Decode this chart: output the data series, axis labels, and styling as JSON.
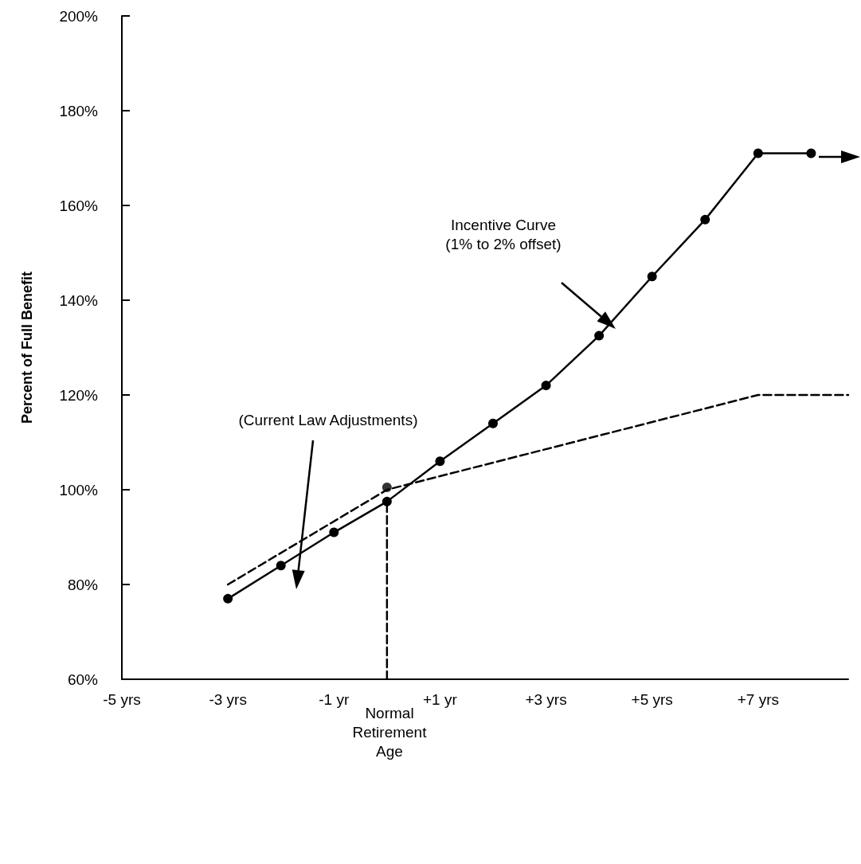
{
  "chart_data": {
    "type": "line",
    "ylabel": "Percent of Full Benefit",
    "xlim": [
      -5,
      8.7
    ],
    "ylim": [
      60,
      200
    ],
    "xticks": [
      {
        "value": -5,
        "label": "-5 yrs"
      },
      {
        "value": -3,
        "label": "-3 yrs"
      },
      {
        "value": -1,
        "label": "-1 yr"
      },
      {
        "value": 1,
        "label": "+1 yr"
      },
      {
        "value": 3,
        "label": "+3 yrs"
      },
      {
        "value": 5,
        "label": "+5 yrs"
      },
      {
        "value": 7,
        "label": "+7 yrs"
      }
    ],
    "yticks": [
      {
        "value": 60,
        "label": "60%"
      },
      {
        "value": 80,
        "label": "80%"
      },
      {
        "value": 100,
        "label": "100%"
      },
      {
        "value": 120,
        "label": "120%"
      },
      {
        "value": 140,
        "label": "140%"
      },
      {
        "value": 160,
        "label": "160%"
      },
      {
        "value": 180,
        "label": "180%"
      },
      {
        "value": 200,
        "label": "200%"
      }
    ],
    "grid": false,
    "legend": false,
    "series": [
      {
        "type": "line",
        "color": "#000000",
        "marker": "circle",
        "line_style": "solid",
        "x": [
          -3,
          -2,
          -1,
          0,
          1,
          2,
          3,
          4,
          5,
          6,
          7,
          8
        ],
        "values": [
          77,
          84,
          91,
          97.5,
          106,
          114,
          122,
          132.5,
          145,
          157,
          171,
          171
        ]
      },
      {
        "type": "line",
        "color": "#000000",
        "marker": "none",
        "line_style": "dashed",
        "x": [
          -3,
          0,
          7,
          8.7
        ],
        "values": [
          80,
          100,
          120,
          120
        ]
      },
      {
        "type": "scatter",
        "color": "#000000",
        "marker": "circle",
        "x": [
          0
        ],
        "values": [
          100.5
        ]
      },
      {
        "type": "line",
        "color": "#000000",
        "marker": "none",
        "line_style": "dashed",
        "x": [
          0,
          0
        ],
        "values": [
          60,
          97.5
        ]
      }
    ],
    "annotations": [
      "Incentive Curve\n(1% to 2% offset)",
      "(Current Law Adjustments)",
      "Normal\nRetirement\nAge"
    ]
  }
}
